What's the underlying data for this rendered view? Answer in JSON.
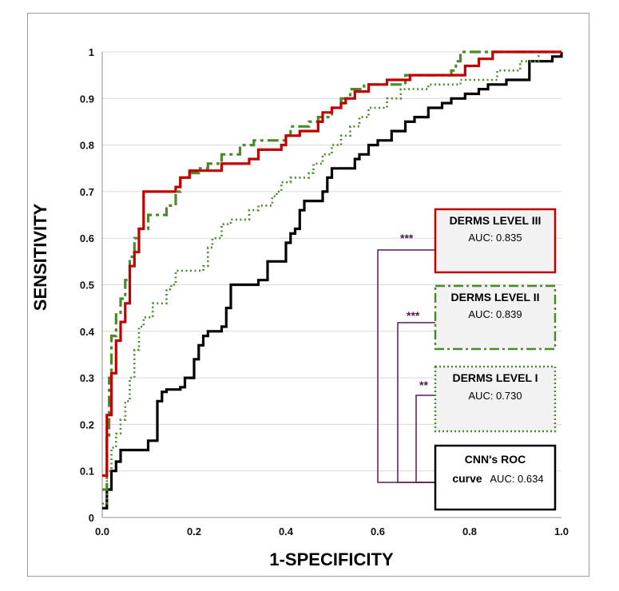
{
  "chart_data": {
    "type": "line",
    "xlabel": "1-SPECIFICITY",
    "ylabel": "SENSITIVITY",
    "xlim": [
      0,
      1
    ],
    "ylim": [
      0,
      1
    ],
    "x_ticks": [
      "0.0",
      "0.2",
      "0.4",
      "0.6",
      "0.8",
      "1.0"
    ],
    "y_ticks": [
      "0",
      "0.1",
      "0.2",
      "0.3",
      "0.4",
      "0.5",
      "0.6",
      "0.7",
      "0.8",
      "0.9",
      "1"
    ],
    "grid": "horizontal",
    "series": [
      {
        "name": "DERMS LEVEL III",
        "auc_label": "AUC: 0.835",
        "color": "#c00000",
        "style": "solid",
        "points": [
          [
            0,
            0.09
          ],
          [
            0.01,
            0.09
          ],
          [
            0.01,
            0.22
          ],
          [
            0.02,
            0.22
          ],
          [
            0.02,
            0.31
          ],
          [
            0.03,
            0.31
          ],
          [
            0.03,
            0.38
          ],
          [
            0.04,
            0.38
          ],
          [
            0.04,
            0.42
          ],
          [
            0.05,
            0.42
          ],
          [
            0.05,
            0.46
          ],
          [
            0.06,
            0.46
          ],
          [
            0.06,
            0.54
          ],
          [
            0.07,
            0.54
          ],
          [
            0.07,
            0.57
          ],
          [
            0.08,
            0.57
          ],
          [
            0.08,
            0.62
          ],
          [
            0.09,
            0.62
          ],
          [
            0.09,
            0.7
          ],
          [
            0.16,
            0.7
          ],
          [
            0.16,
            0.71
          ],
          [
            0.17,
            0.71
          ],
          [
            0.17,
            0.73
          ],
          [
            0.19,
            0.73
          ],
          [
            0.19,
            0.745
          ],
          [
            0.26,
            0.745
          ],
          [
            0.26,
            0.76
          ],
          [
            0.32,
            0.76
          ],
          [
            0.32,
            0.77
          ],
          [
            0.34,
            0.77
          ],
          [
            0.34,
            0.79
          ],
          [
            0.39,
            0.79
          ],
          [
            0.39,
            0.8
          ],
          [
            0.4,
            0.8
          ],
          [
            0.4,
            0.82
          ],
          [
            0.43,
            0.82
          ],
          [
            0.43,
            0.83
          ],
          [
            0.47,
            0.83
          ],
          [
            0.47,
            0.85
          ],
          [
            0.48,
            0.85
          ],
          [
            0.48,
            0.87
          ],
          [
            0.5,
            0.87
          ],
          [
            0.5,
            0.88
          ],
          [
            0.52,
            0.88
          ],
          [
            0.52,
            0.89
          ],
          [
            0.53,
            0.89
          ],
          [
            0.53,
            0.9
          ],
          [
            0.55,
            0.9
          ],
          [
            0.55,
            0.915
          ],
          [
            0.58,
            0.915
          ],
          [
            0.58,
            0.93
          ],
          [
            0.62,
            0.93
          ],
          [
            0.62,
            0.94
          ],
          [
            0.67,
            0.94
          ],
          [
            0.67,
            0.95
          ],
          [
            0.79,
            0.95
          ],
          [
            0.79,
            0.97
          ],
          [
            0.82,
            0.97
          ],
          [
            0.82,
            0.985
          ],
          [
            0.85,
            0.985
          ],
          [
            0.85,
            1.0
          ],
          [
            1.0,
            1.0
          ]
        ]
      },
      {
        "name": "DERMS LEVEL II",
        "auc_label": "AUC: 0.839",
        "color": "#4a8a2a",
        "style": "dashdot",
        "points": [
          [
            0,
            0.06
          ],
          [
            0.01,
            0.06
          ],
          [
            0.01,
            0.17
          ],
          [
            0.015,
            0.17
          ],
          [
            0.015,
            0.3
          ],
          [
            0.02,
            0.3
          ],
          [
            0.02,
            0.39
          ],
          [
            0.03,
            0.39
          ],
          [
            0.03,
            0.44
          ],
          [
            0.04,
            0.44
          ],
          [
            0.04,
            0.47
          ],
          [
            0.05,
            0.47
          ],
          [
            0.05,
            0.51
          ],
          [
            0.06,
            0.51
          ],
          [
            0.06,
            0.56
          ],
          [
            0.07,
            0.56
          ],
          [
            0.07,
            0.6
          ],
          [
            0.08,
            0.6
          ],
          [
            0.08,
            0.62
          ],
          [
            0.1,
            0.62
          ],
          [
            0.1,
            0.65
          ],
          [
            0.14,
            0.65
          ],
          [
            0.14,
            0.67
          ],
          [
            0.16,
            0.67
          ],
          [
            0.16,
            0.7
          ],
          [
            0.17,
            0.7
          ],
          [
            0.17,
            0.73
          ],
          [
            0.19,
            0.73
          ],
          [
            0.19,
            0.74
          ],
          [
            0.21,
            0.74
          ],
          [
            0.21,
            0.75
          ],
          [
            0.23,
            0.75
          ],
          [
            0.23,
            0.76
          ],
          [
            0.26,
            0.76
          ],
          [
            0.26,
            0.78
          ],
          [
            0.3,
            0.78
          ],
          [
            0.3,
            0.8
          ],
          [
            0.33,
            0.8
          ],
          [
            0.33,
            0.81
          ],
          [
            0.4,
            0.81
          ],
          [
            0.4,
            0.82
          ],
          [
            0.41,
            0.82
          ],
          [
            0.41,
            0.84
          ],
          [
            0.45,
            0.84
          ],
          [
            0.45,
            0.85
          ],
          [
            0.47,
            0.85
          ],
          [
            0.47,
            0.86
          ],
          [
            0.5,
            0.86
          ],
          [
            0.5,
            0.88
          ],
          [
            0.52,
            0.88
          ],
          [
            0.52,
            0.9
          ],
          [
            0.54,
            0.9
          ],
          [
            0.54,
            0.92
          ],
          [
            0.57,
            0.92
          ],
          [
            0.57,
            0.93
          ],
          [
            0.66,
            0.93
          ],
          [
            0.66,
            0.95
          ],
          [
            0.76,
            0.95
          ],
          [
            0.76,
            0.96
          ],
          [
            0.77,
            0.96
          ],
          [
            0.77,
            0.98
          ],
          [
            0.78,
            0.98
          ],
          [
            0.78,
            1.0
          ],
          [
            1.0,
            1.0
          ]
        ]
      },
      {
        "name": "DERMS LEVEL I",
        "auc_label": "AUC: 0.730",
        "color": "#4a8a2a",
        "style": "dotted",
        "points": [
          [
            0,
            0.03
          ],
          [
            0.01,
            0.03
          ],
          [
            0.01,
            0.1
          ],
          [
            0.02,
            0.1
          ],
          [
            0.02,
            0.15
          ],
          [
            0.03,
            0.15
          ],
          [
            0.03,
            0.18
          ],
          [
            0.04,
            0.18
          ],
          [
            0.04,
            0.21
          ],
          [
            0.05,
            0.21
          ],
          [
            0.05,
            0.25
          ],
          [
            0.06,
            0.25
          ],
          [
            0.06,
            0.3
          ],
          [
            0.07,
            0.3
          ],
          [
            0.07,
            0.36
          ],
          [
            0.08,
            0.36
          ],
          [
            0.08,
            0.41
          ],
          [
            0.09,
            0.41
          ],
          [
            0.09,
            0.43
          ],
          [
            0.11,
            0.43
          ],
          [
            0.11,
            0.46
          ],
          [
            0.14,
            0.46
          ],
          [
            0.14,
            0.49
          ],
          [
            0.15,
            0.49
          ],
          [
            0.15,
            0.5
          ],
          [
            0.16,
            0.5
          ],
          [
            0.16,
            0.53
          ],
          [
            0.22,
            0.53
          ],
          [
            0.22,
            0.54
          ],
          [
            0.23,
            0.54
          ],
          [
            0.23,
            0.58
          ],
          [
            0.24,
            0.58
          ],
          [
            0.24,
            0.6
          ],
          [
            0.26,
            0.6
          ],
          [
            0.26,
            0.63
          ],
          [
            0.28,
            0.63
          ],
          [
            0.28,
            0.64
          ],
          [
            0.32,
            0.64
          ],
          [
            0.32,
            0.66
          ],
          [
            0.34,
            0.66
          ],
          [
            0.34,
            0.67
          ],
          [
            0.37,
            0.67
          ],
          [
            0.37,
            0.69
          ],
          [
            0.38,
            0.69
          ],
          [
            0.38,
            0.7
          ],
          [
            0.39,
            0.7
          ],
          [
            0.39,
            0.72
          ],
          [
            0.41,
            0.72
          ],
          [
            0.41,
            0.73
          ],
          [
            0.45,
            0.73
          ],
          [
            0.45,
            0.74
          ],
          [
            0.46,
            0.74
          ],
          [
            0.46,
            0.76
          ],
          [
            0.48,
            0.76
          ],
          [
            0.48,
            0.78
          ],
          [
            0.5,
            0.78
          ],
          [
            0.5,
            0.8
          ],
          [
            0.52,
            0.8
          ],
          [
            0.52,
            0.82
          ],
          [
            0.54,
            0.82
          ],
          [
            0.54,
            0.84
          ],
          [
            0.56,
            0.84
          ],
          [
            0.56,
            0.86
          ],
          [
            0.58,
            0.86
          ],
          [
            0.58,
            0.88
          ],
          [
            0.62,
            0.88
          ],
          [
            0.62,
            0.9
          ],
          [
            0.65,
            0.9
          ],
          [
            0.65,
            0.92
          ],
          [
            0.71,
            0.92
          ],
          [
            0.71,
            0.93
          ],
          [
            0.78,
            0.93
          ],
          [
            0.78,
            0.94
          ],
          [
            0.86,
            0.94
          ],
          [
            0.86,
            0.96
          ],
          [
            0.91,
            0.96
          ],
          [
            0.91,
            0.98
          ],
          [
            0.95,
            0.98
          ],
          [
            0.95,
            1.0
          ],
          [
            1.0,
            1.0
          ]
        ]
      },
      {
        "name": "CNN's ROC curve",
        "auc_label": "AUC: 0.634",
        "color": "#000000",
        "style": "solid",
        "points": [
          [
            0,
            0.02
          ],
          [
            0.01,
            0.02
          ],
          [
            0.01,
            0.06
          ],
          [
            0.02,
            0.06
          ],
          [
            0.02,
            0.1
          ],
          [
            0.03,
            0.1
          ],
          [
            0.03,
            0.12
          ],
          [
            0.04,
            0.12
          ],
          [
            0.04,
            0.145
          ],
          [
            0.1,
            0.145
          ],
          [
            0.1,
            0.165
          ],
          [
            0.12,
            0.165
          ],
          [
            0.12,
            0.25
          ],
          [
            0.13,
            0.25
          ],
          [
            0.13,
            0.27
          ],
          [
            0.14,
            0.27
          ],
          [
            0.14,
            0.275
          ],
          [
            0.17,
            0.275
          ],
          [
            0.17,
            0.28
          ],
          [
            0.18,
            0.28
          ],
          [
            0.18,
            0.3
          ],
          [
            0.2,
            0.3
          ],
          [
            0.2,
            0.34
          ],
          [
            0.21,
            0.34
          ],
          [
            0.21,
            0.37
          ],
          [
            0.22,
            0.37
          ],
          [
            0.22,
            0.39
          ],
          [
            0.23,
            0.39
          ],
          [
            0.23,
            0.4
          ],
          [
            0.26,
            0.4
          ],
          [
            0.26,
            0.41
          ],
          [
            0.27,
            0.41
          ],
          [
            0.27,
            0.45
          ],
          [
            0.28,
            0.45
          ],
          [
            0.28,
            0.5
          ],
          [
            0.34,
            0.5
          ],
          [
            0.34,
            0.51
          ],
          [
            0.36,
            0.51
          ],
          [
            0.36,
            0.55
          ],
          [
            0.4,
            0.55
          ],
          [
            0.4,
            0.59
          ],
          [
            0.41,
            0.59
          ],
          [
            0.41,
            0.61
          ],
          [
            0.42,
            0.61
          ],
          [
            0.42,
            0.62
          ],
          [
            0.43,
            0.62
          ],
          [
            0.43,
            0.66
          ],
          [
            0.44,
            0.66
          ],
          [
            0.44,
            0.68
          ],
          [
            0.48,
            0.68
          ],
          [
            0.48,
            0.7
          ],
          [
            0.49,
            0.7
          ],
          [
            0.49,
            0.73
          ],
          [
            0.5,
            0.73
          ],
          [
            0.5,
            0.75
          ],
          [
            0.55,
            0.75
          ],
          [
            0.55,
            0.77
          ],
          [
            0.56,
            0.77
          ],
          [
            0.56,
            0.78
          ],
          [
            0.58,
            0.78
          ],
          [
            0.58,
            0.8
          ],
          [
            0.6,
            0.8
          ],
          [
            0.6,
            0.81
          ],
          [
            0.63,
            0.81
          ],
          [
            0.63,
            0.83
          ],
          [
            0.66,
            0.83
          ],
          [
            0.66,
            0.85
          ],
          [
            0.68,
            0.85
          ],
          [
            0.68,
            0.86
          ],
          [
            0.71,
            0.86
          ],
          [
            0.71,
            0.88
          ],
          [
            0.74,
            0.88
          ],
          [
            0.74,
            0.89
          ],
          [
            0.76,
            0.89
          ],
          [
            0.76,
            0.9
          ],
          [
            0.79,
            0.9
          ],
          [
            0.79,
            0.91
          ],
          [
            0.82,
            0.91
          ],
          [
            0.82,
            0.92
          ],
          [
            0.84,
            0.92
          ],
          [
            0.84,
            0.93
          ],
          [
            0.88,
            0.93
          ],
          [
            0.88,
            0.94
          ],
          [
            0.93,
            0.94
          ],
          [
            0.93,
            0.98
          ],
          [
            0.98,
            0.98
          ],
          [
            0.98,
            0.99
          ],
          [
            1.0,
            0.99
          ],
          [
            1.0,
            1.0
          ]
        ]
      }
    ],
    "significance": [
      {
        "compare": [
          "DERMS LEVEL III",
          "CNN's ROC curve"
        ],
        "label": "***"
      },
      {
        "compare": [
          "DERMS LEVEL II",
          "CNN's ROC curve"
        ],
        "label": "***"
      },
      {
        "compare": [
          "DERMS LEVEL I",
          "CNN's ROC curve"
        ],
        "label": "**"
      }
    ],
    "bracket_color": "#5a1a5a"
  },
  "legend_boxes": [
    {
      "title": "DERMS LEVEL III",
      "auc": "AUC: 0.835",
      "border": "solid",
      "color": "#c00000",
      "fill": "#f2f2f2"
    },
    {
      "title": "DERMS LEVEL II",
      "auc": "AUC: 0.839",
      "border": "dashdot",
      "color": "#4a8a2a",
      "fill": "#f2f2f2"
    },
    {
      "title": "DERMS LEVEL I",
      "auc": "AUC: 0.730",
      "border": "dotted",
      "color": "#4a8a2a",
      "fill": "#f2f2f2"
    },
    {
      "title_line1": "CNN's ROC",
      "title_line2": "curve",
      "auc": "AUC: 0.634",
      "border": "solid",
      "color": "#000000",
      "fill": "#ffffff"
    }
  ]
}
